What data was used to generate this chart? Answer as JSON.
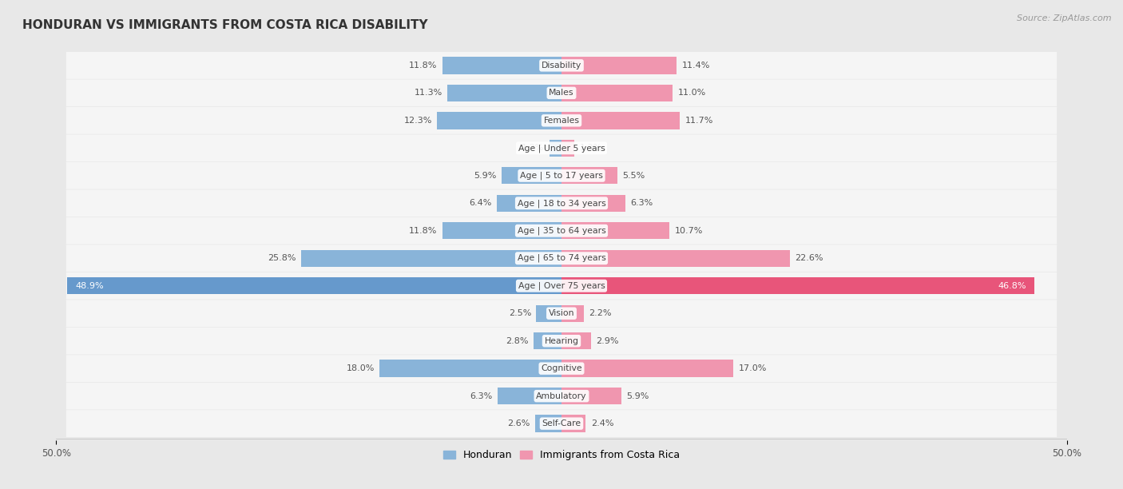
{
  "title": "HONDURAN VS IMMIGRANTS FROM COSTA RICA DISABILITY",
  "source": "Source: ZipAtlas.com",
  "categories": [
    "Disability",
    "Males",
    "Females",
    "Age | Under 5 years",
    "Age | 5 to 17 years",
    "Age | 18 to 34 years",
    "Age | 35 to 64 years",
    "Age | 65 to 74 years",
    "Age | Over 75 years",
    "Vision",
    "Hearing",
    "Cognitive",
    "Ambulatory",
    "Self-Care"
  ],
  "honduran": [
    11.8,
    11.3,
    12.3,
    1.2,
    5.9,
    6.4,
    11.8,
    25.8,
    48.9,
    2.5,
    2.8,
    18.0,
    6.3,
    2.6
  ],
  "costa_rica": [
    11.4,
    11.0,
    11.7,
    1.3,
    5.5,
    6.3,
    10.7,
    22.6,
    46.8,
    2.2,
    2.9,
    17.0,
    5.9,
    2.4
  ],
  "honduran_color": "#89b4d9",
  "costa_rica_color": "#f096af",
  "honduran_color_highlight": "#6699cc",
  "costa_rica_color_highlight": "#e8557a",
  "background_color": "#e8e8e8",
  "row_bg": "#f5f5f5",
  "row_separator": "#d8d8d8",
  "axis_max": 50.0,
  "legend_honduran": "Honduran",
  "legend_costa_rica": "Immigrants from Costa Rica",
  "label_color_normal": "#555555",
  "label_color_highlight": "#ffffff"
}
